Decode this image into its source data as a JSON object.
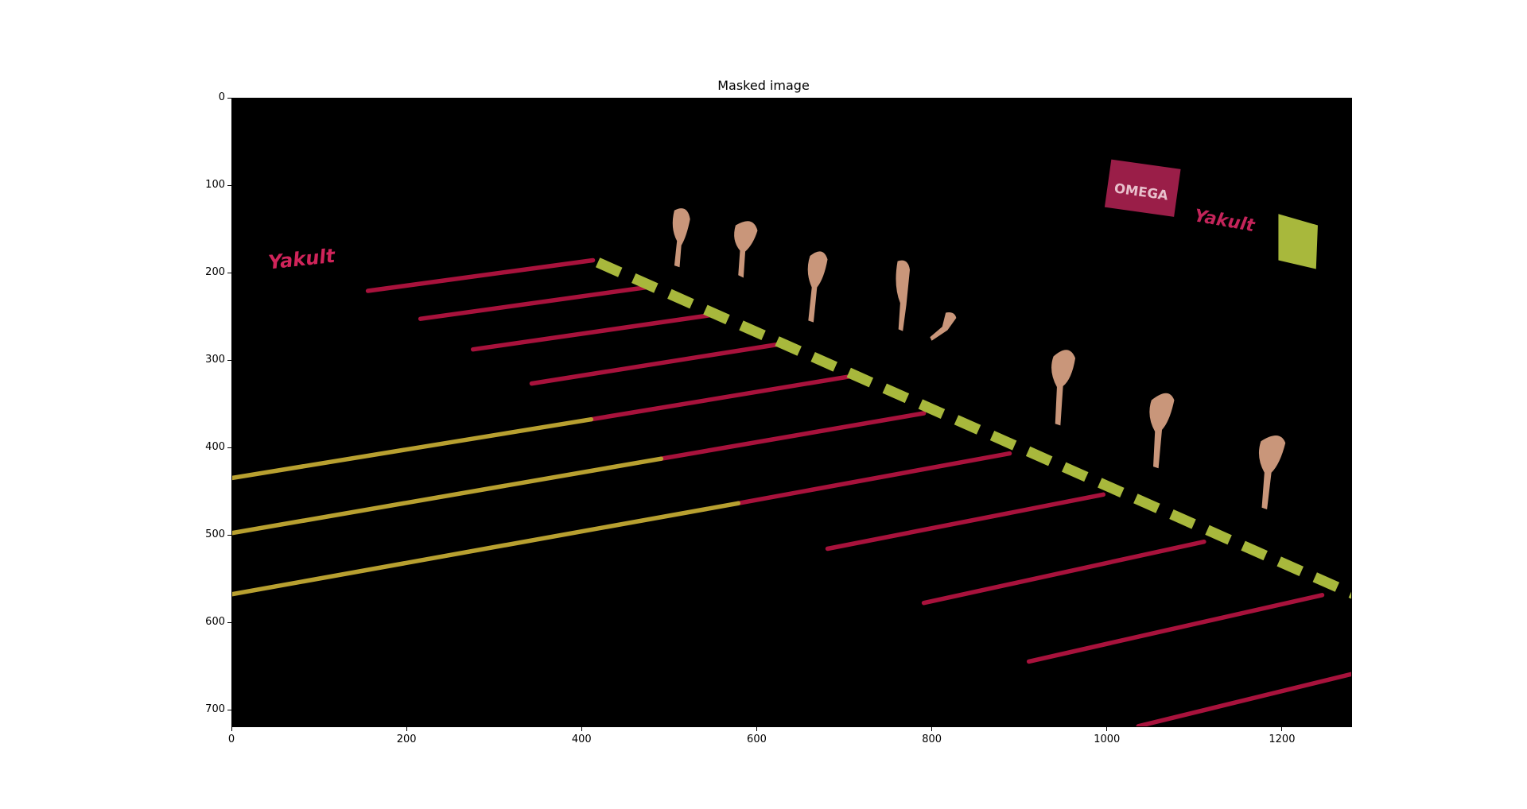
{
  "figure": {
    "title": "Masked image",
    "xaxis": {
      "ticks": [
        0,
        200,
        400,
        600,
        800,
        1000,
        1200
      ],
      "range": [
        0,
        1280
      ]
    },
    "yaxis": {
      "ticks": [
        0,
        100,
        200,
        300,
        400,
        500,
        600,
        700
      ],
      "range": [
        0,
        720
      ],
      "inverted": true
    },
    "image": {
      "description_labels": [
        "Yakult",
        "Yakult",
        "OMEGA"
      ],
      "colors": {
        "background": "#000000",
        "lane_red": "#a8123c",
        "lane_yellow": "#b8a030",
        "block_green": "#a8b83c",
        "skin": "#c9967a",
        "banner": "#9a1e48"
      }
    }
  }
}
